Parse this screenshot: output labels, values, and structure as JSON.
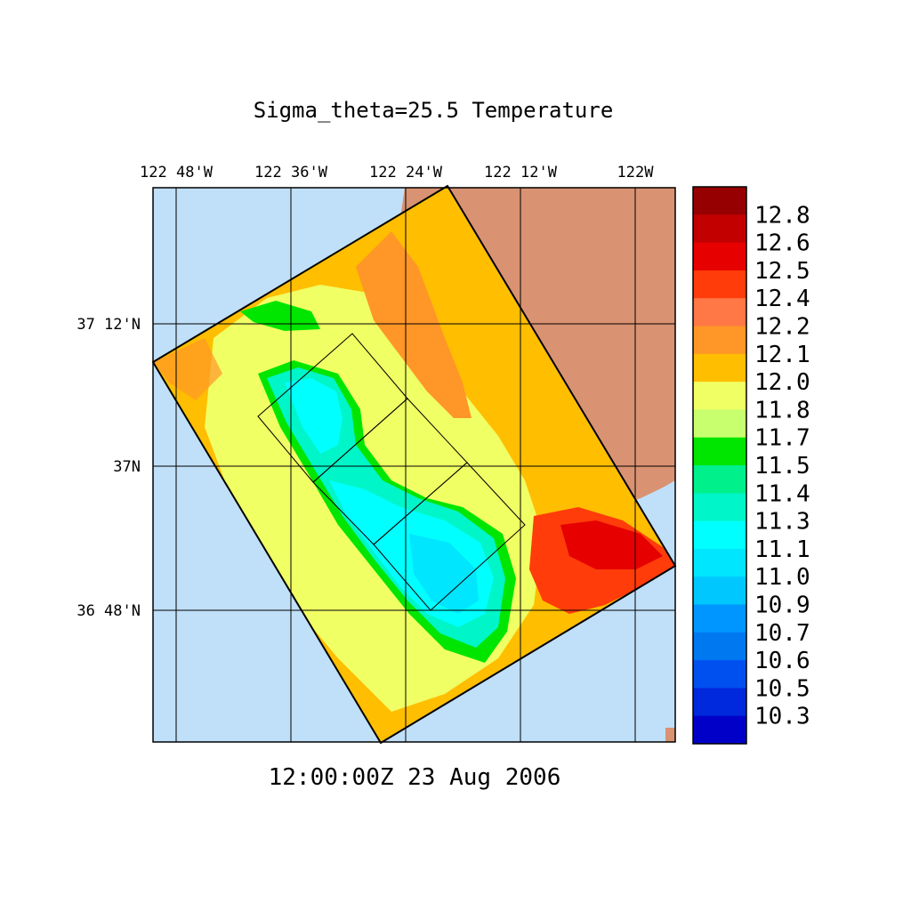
{
  "title": "Sigma_theta=25.5 Temperature",
  "timestamp": "12:00:00Z  23 Aug 2006",
  "map": {
    "lon_labels": [
      "122 48'W",
      "122 36'W",
      "122 24'W",
      "122 12'W",
      "122W"
    ],
    "lat_labels": [
      "37 12'N",
      "37N",
      "36 48'N"
    ],
    "colors": {
      "ocean": "#c0dff8",
      "land": "#d99272",
      "grid": "#000000"
    }
  },
  "colorbar": {
    "labels": [
      "12.8",
      "12.6",
      "12.5",
      "12.4",
      "12.2",
      "12.1",
      "12.0",
      "11.8",
      "11.7",
      "11.5",
      "11.4",
      "11.3",
      "11.1",
      "11.0",
      "10.9",
      "10.7",
      "10.6",
      "10.5",
      "10.3"
    ],
    "colors": [
      "#960000",
      "#c30000",
      "#e60000",
      "#ff3c0a",
      "#ff7846",
      "#ff9628",
      "#ffbe00",
      "#f0ff64",
      "#c8ff6e",
      "#00e600",
      "#00f08c",
      "#00f5c8",
      "#00ffff",
      "#00e6ff",
      "#00c8ff",
      "#0096ff",
      "#0078f0",
      "#0050f0",
      "#0028dc",
      "#0000c8"
    ]
  }
}
